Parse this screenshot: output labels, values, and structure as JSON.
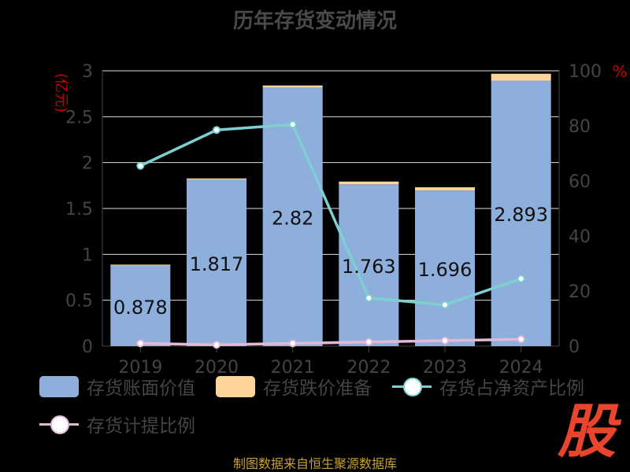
{
  "title": "历年存货变动情况",
  "unit_left": "(亿元)",
  "unit_right": "%",
  "source": "制图数据来自恒生聚源数据库",
  "logo": "股",
  "colors": {
    "book": "#8eafdc",
    "reserve": "#fdd49a",
    "ratio": "#7ecfd0",
    "provision": "#e2b8d8"
  },
  "chart_data": {
    "type": "bar",
    "categories": [
      "2019",
      "2020",
      "2021",
      "2022",
      "2023",
      "2024"
    ],
    "series": [
      {
        "name": "存货账面价值",
        "type": "bar",
        "axis": "left",
        "values": [
          0.878,
          1.817,
          2.82,
          1.763,
          1.696,
          2.893
        ]
      },
      {
        "name": "存货跌价准备",
        "type": "bar",
        "axis": "left",
        "stacked": true,
        "values": [
          0.01,
          0.01,
          0.02,
          0.03,
          0.035,
          0.075
        ]
      },
      {
        "name": "存货占净资产比例",
        "type": "line",
        "axis": "right",
        "values": [
          65.5,
          78.5,
          80.5,
          17.5,
          15.0,
          24.5
        ]
      },
      {
        "name": "存货计提比例",
        "type": "line",
        "axis": "right",
        "values": [
          1.0,
          0.5,
          1.0,
          1.5,
          2.0,
          2.5
        ]
      }
    ],
    "y_left": {
      "min": 0,
      "max": 3,
      "ticks": [
        "0",
        "0.5",
        "1",
        "1.5",
        "2",
        "2.5",
        "3"
      ]
    },
    "y_right": {
      "min": 0,
      "max": 100,
      "ticks": [
        "0",
        "20",
        "40",
        "60",
        "80",
        "100"
      ]
    },
    "data_labels": [
      "0.878",
      "1.817",
      "2.82",
      "1.763",
      "1.696",
      "2.893"
    ],
    "grid": true,
    "legend_position": "bottom"
  },
  "legend": [
    {
      "label": "存货账面价值"
    },
    {
      "label": "存货跌价准备"
    },
    {
      "label": "存货占净资产比例"
    },
    {
      "label": "存货计提比例"
    }
  ]
}
